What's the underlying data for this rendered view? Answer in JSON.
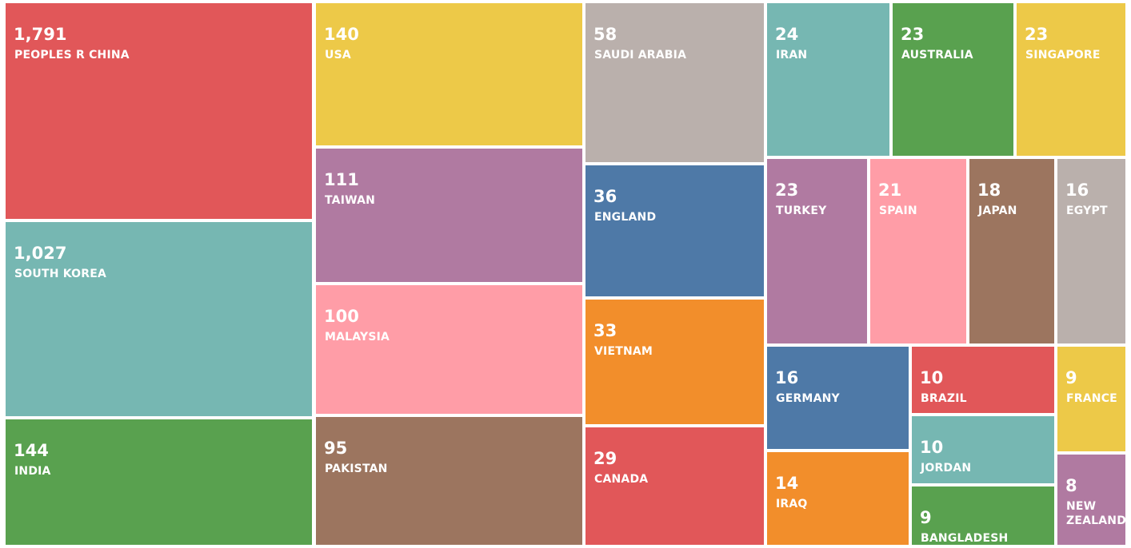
{
  "chart_data": {
    "type": "treemap",
    "title": "",
    "items": [
      {
        "name": "PEOPLES R CHINA",
        "value": 1791,
        "value_label": "1,791",
        "color": "#e15759"
      },
      {
        "name": "SOUTH KOREA",
        "value": 1027,
        "value_label": "1,027",
        "color": "#76b7b2"
      },
      {
        "name": "INDIA",
        "value": 144,
        "value_label": "144",
        "color": "#59a14f"
      },
      {
        "name": "USA",
        "value": 140,
        "value_label": "140",
        "color": "#edc948"
      },
      {
        "name": "TAIWAN",
        "value": 111,
        "value_label": "111",
        "color": "#b07aa1"
      },
      {
        "name": "MALAYSIA",
        "value": 100,
        "value_label": "100",
        "color": "#ff9da7"
      },
      {
        "name": "PAKISTAN",
        "value": 95,
        "value_label": "95",
        "color": "#9c755f"
      },
      {
        "name": "SAUDI ARABIA",
        "value": 58,
        "value_label": "58",
        "color": "#bab0ac"
      },
      {
        "name": "ENGLAND",
        "value": 36,
        "value_label": "36",
        "color": "#4e79a7"
      },
      {
        "name": "VIETNAM",
        "value": 33,
        "value_label": "33",
        "color": "#f28e2b"
      },
      {
        "name": "CANADA",
        "value": 29,
        "value_label": "29",
        "color": "#e15759"
      },
      {
        "name": "IRAN",
        "value": 24,
        "value_label": "24",
        "color": "#76b7b2"
      },
      {
        "name": "AUSTRALIA",
        "value": 23,
        "value_label": "23",
        "color": "#59a14f"
      },
      {
        "name": "SINGAPORE",
        "value": 23,
        "value_label": "23",
        "color": "#edc948"
      },
      {
        "name": "TURKEY",
        "value": 23,
        "value_label": "23",
        "color": "#b07aa1"
      },
      {
        "name": "SPAIN",
        "value": 21,
        "value_label": "21",
        "color": "#ff9da7"
      },
      {
        "name": "JAPAN",
        "value": 18,
        "value_label": "18",
        "color": "#9c755f"
      },
      {
        "name": "EGYPT",
        "value": 16,
        "value_label": "16",
        "color": "#bab0ac"
      },
      {
        "name": "GERMANY",
        "value": 16,
        "value_label": "16",
        "color": "#4e79a7"
      },
      {
        "name": "IRAQ",
        "value": 14,
        "value_label": "14",
        "color": "#f28e2b"
      },
      {
        "name": "BRAZIL",
        "value": 10,
        "value_label": "10",
        "color": "#e15759"
      },
      {
        "name": "JORDAN",
        "value": 10,
        "value_label": "10",
        "color": "#76b7b2"
      },
      {
        "name": "BANGLADESH",
        "value": 9,
        "value_label": "9",
        "color": "#59a14f"
      },
      {
        "name": "FRANCE",
        "value": 9,
        "value_label": "9",
        "color": "#edc948"
      },
      {
        "name": "NEW ZEALAND",
        "value": 8,
        "value_label": "8",
        "color": "#b07aa1"
      }
    ]
  }
}
